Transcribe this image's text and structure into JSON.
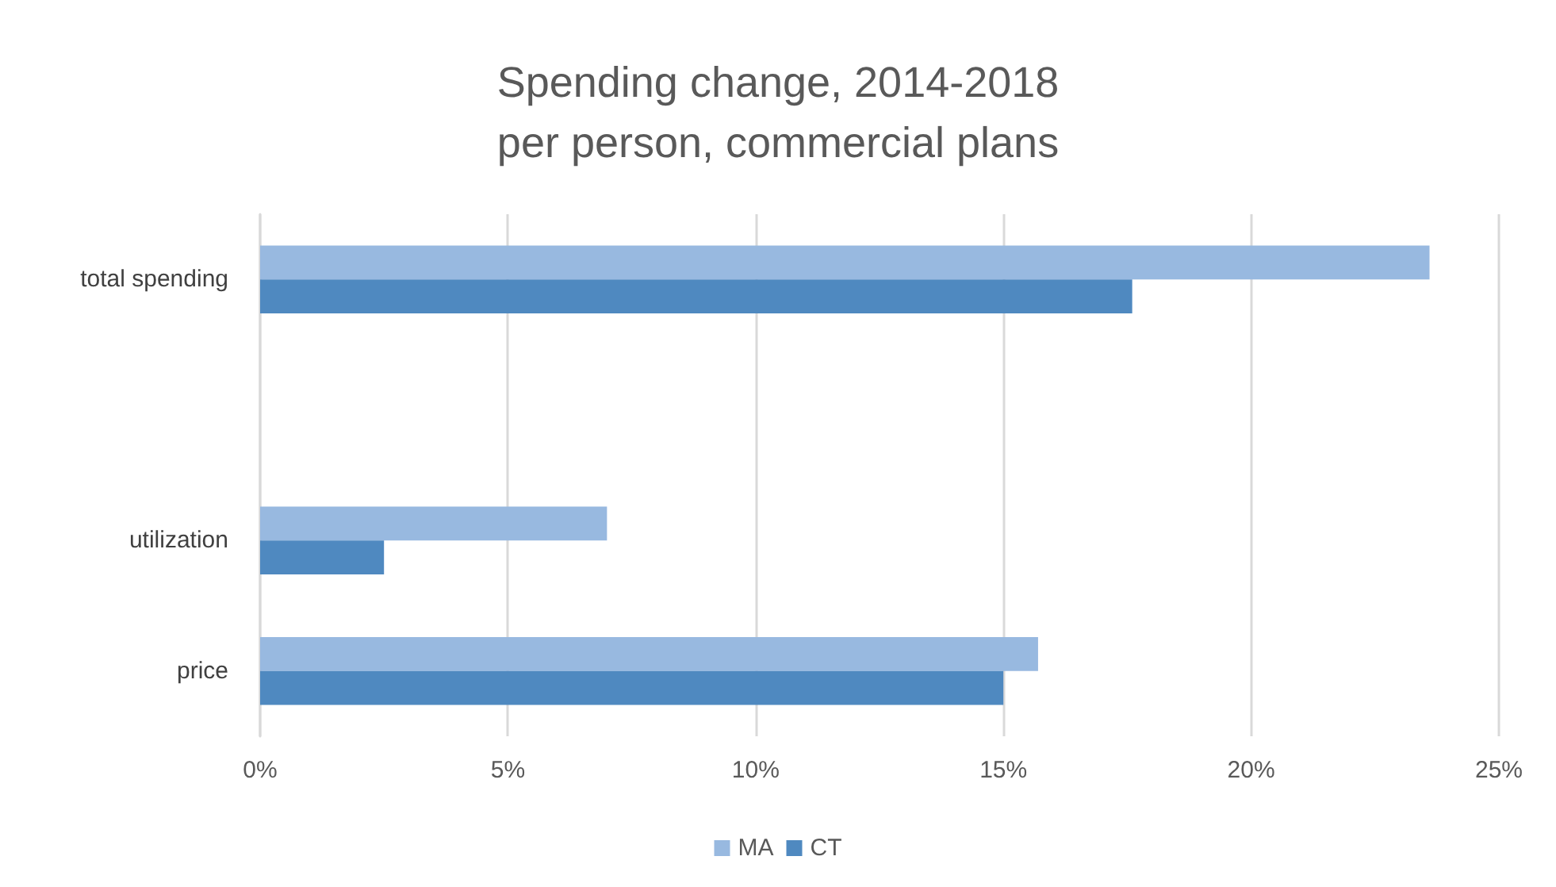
{
  "chart_data": {
    "type": "bar",
    "orientation": "horizontal",
    "title": "Spending change, 2014-2018\nper person, commercial plans",
    "categories": [
      "total spending",
      null,
      "utilization",
      "price"
    ],
    "series": [
      {
        "name": "MA",
        "color": "#98b9e0",
        "values": [
          23.6,
          null,
          7.0,
          15.7
        ]
      },
      {
        "name": "CT",
        "color": "#4f89c0",
        "values": [
          17.6,
          null,
          2.5,
          15.0
        ]
      }
    ],
    "xlim": [
      0,
      25
    ],
    "xticks": [
      {
        "value": 0,
        "label": "0%"
      },
      {
        "value": 5,
        "label": "5%"
      },
      {
        "value": 10,
        "label": "10%"
      },
      {
        "value": 15,
        "label": "15%"
      },
      {
        "value": 20,
        "label": "20%"
      },
      {
        "value": 25,
        "label": "25%"
      }
    ],
    "grid": "x",
    "legend": "bottom"
  }
}
